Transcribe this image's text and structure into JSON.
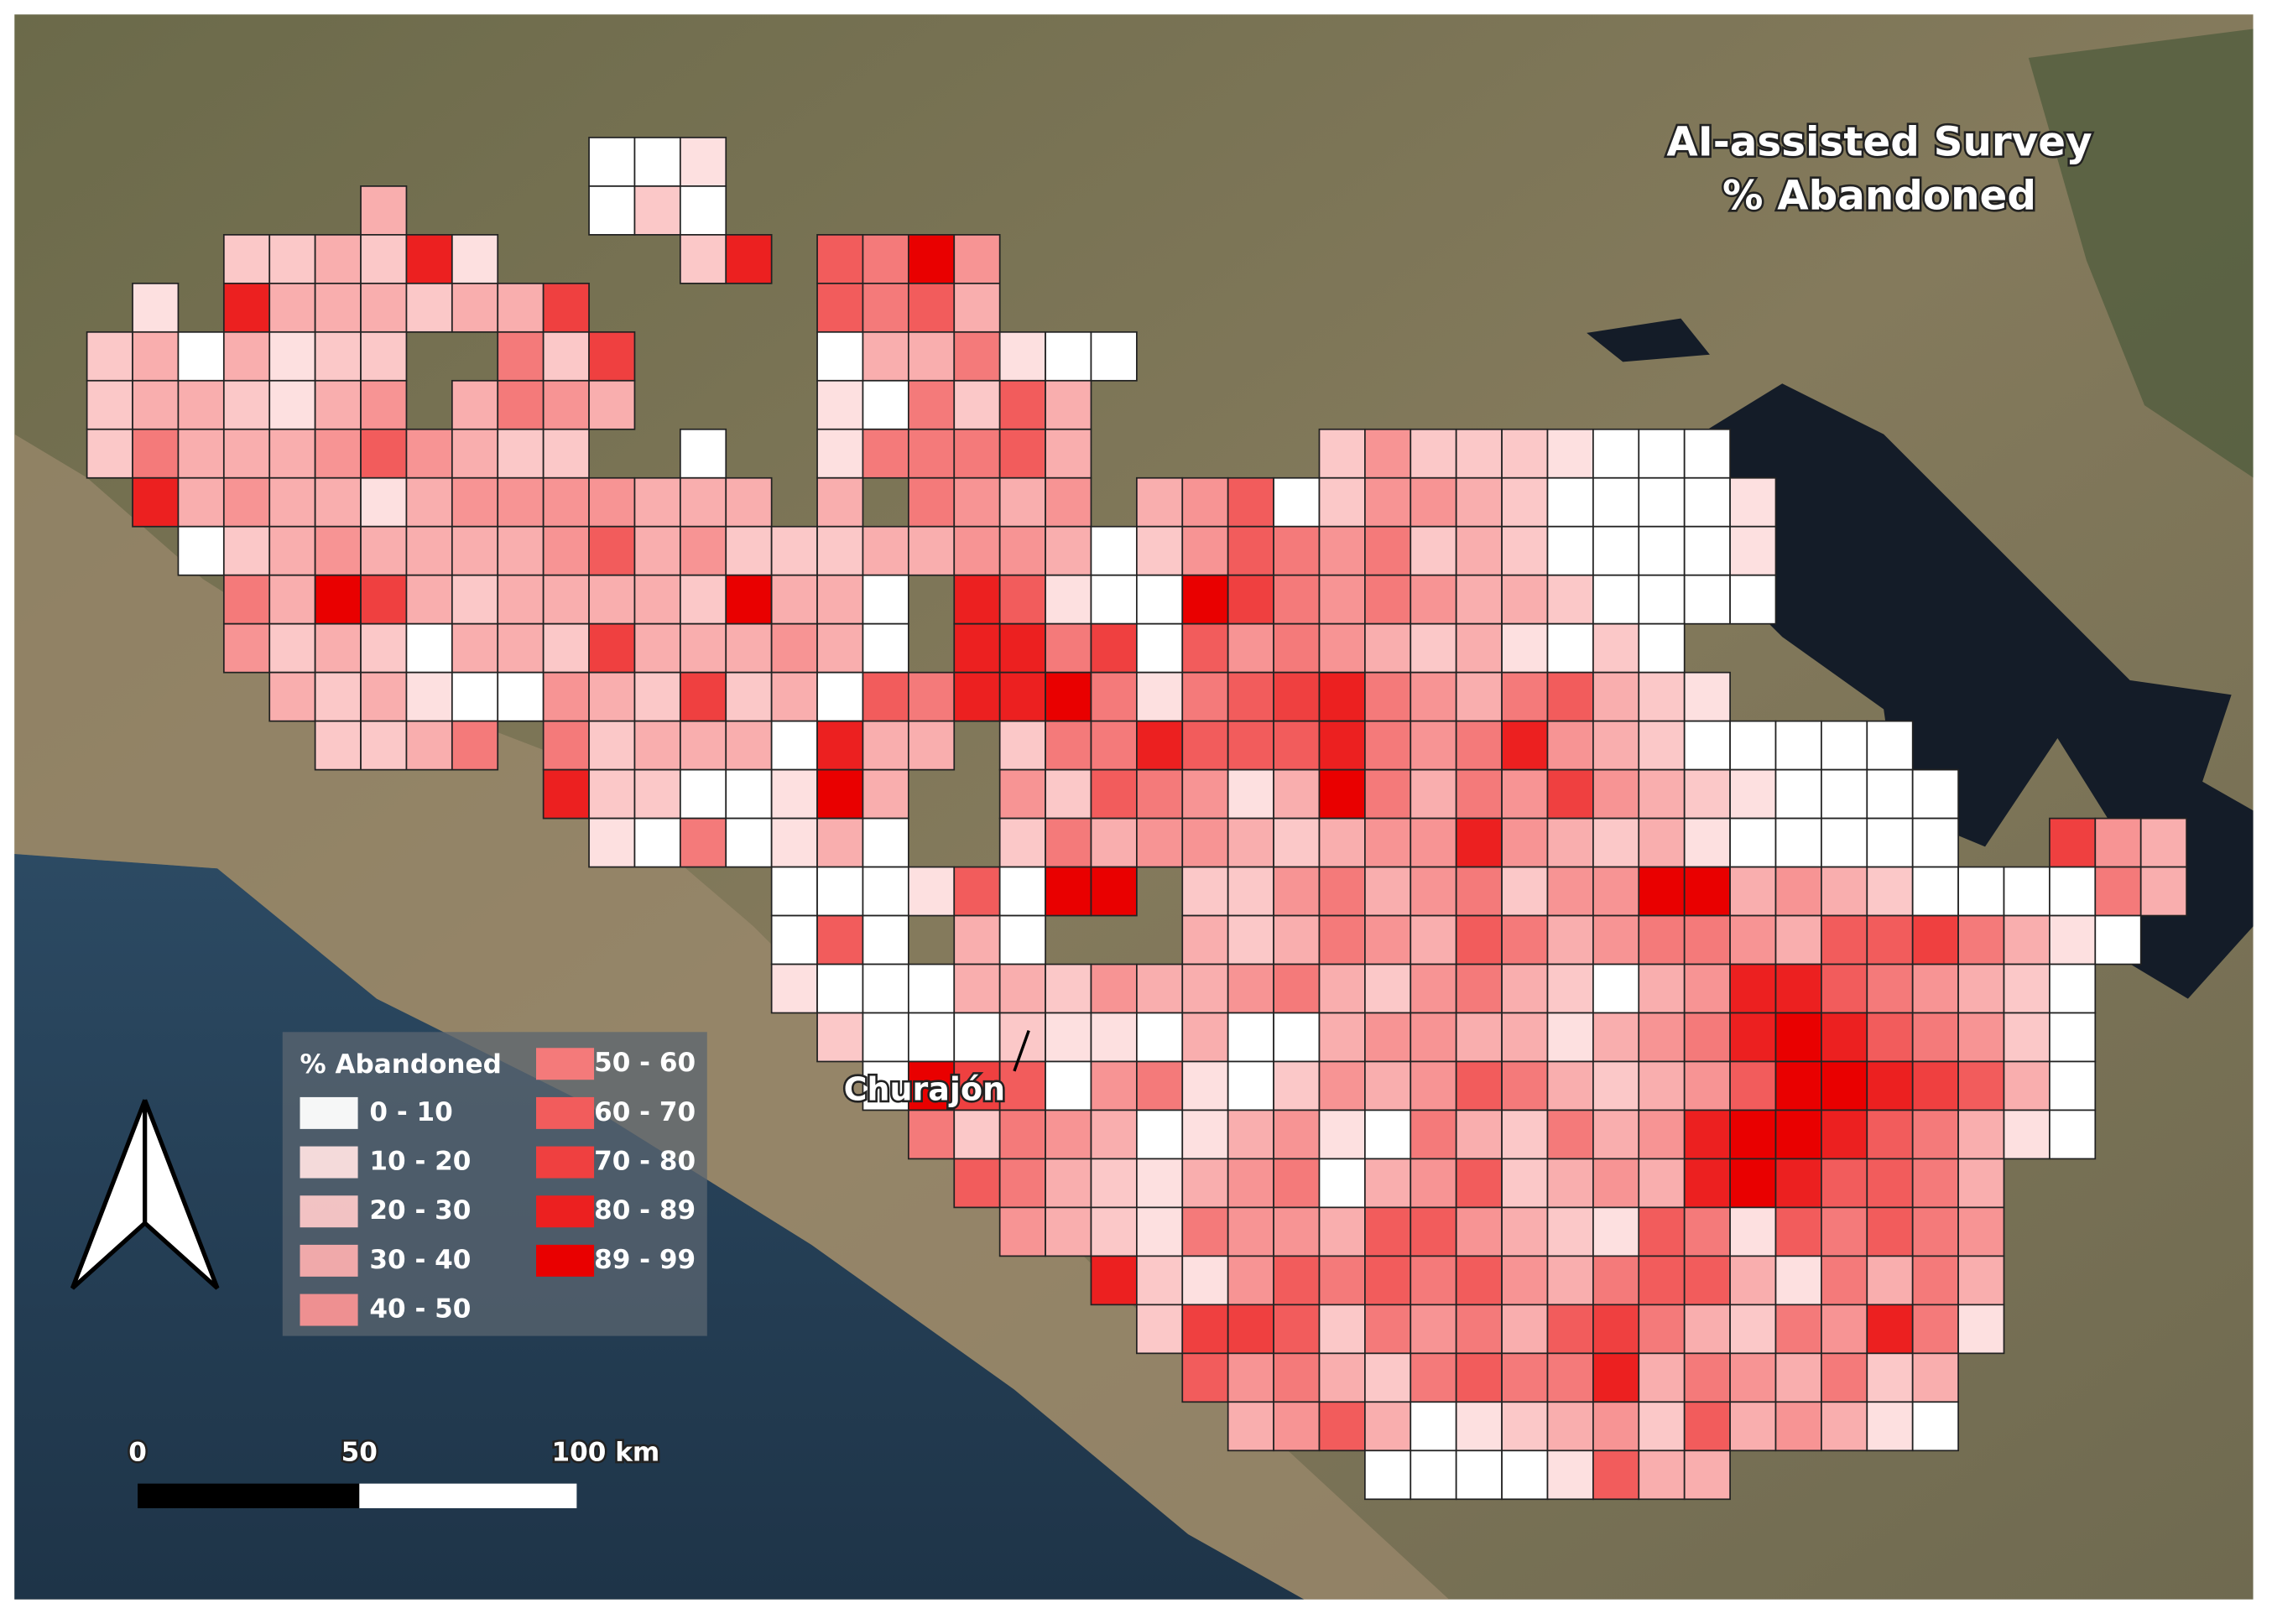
{
  "title": "AI-assisted Survey",
  "subtitle": "% Abandoned",
  "place_label": "Churajón",
  "legend": {
    "title": "% Abandoned",
    "classes": [
      {
        "label": "0 - 10",
        "color": "#ffffff"
      },
      {
        "label": "10 - 20",
        "color": "#fde0e0"
      },
      {
        "label": "20 - 30",
        "color": "#fbc8c8"
      },
      {
        "label": "30 - 40",
        "color": "#f9aeae"
      },
      {
        "label": "40 - 50",
        "color": "#f79494"
      },
      {
        "label": "50 - 60",
        "color": "#f47a7a"
      },
      {
        "label": "60 - 70",
        "color": "#f25c5c"
      },
      {
        "label": "70 - 80",
        "color": "#ef4040"
      },
      {
        "label": "80 - 89",
        "color": "#ec2020"
      },
      {
        "label": "89 - 99",
        "color": "#e90000"
      }
    ]
  },
  "scale_bar": {
    "labels": [
      "0",
      "50",
      "100 km"
    ]
  },
  "grid": {
    "rows": [
      [
        null,
        null,
        null,
        null,
        null,
        null,
        null,
        null,
        null,
        null,
        null,
        0,
        0,
        1
      ],
      [
        null,
        null,
        null,
        null,
        null,
        null,
        3,
        null,
        null,
        null,
        null,
        0,
        2,
        0
      ],
      [
        null,
        null,
        null,
        2,
        2,
        3,
        2,
        8,
        1,
        null,
        null,
        null,
        null,
        2,
        8,
        null,
        6,
        5,
        9,
        4
      ],
      [
        null,
        1,
        null,
        8,
        3,
        3,
        3,
        2,
        3,
        3,
        7,
        null,
        null,
        null,
        null,
        null,
        6,
        5,
        6,
        3
      ],
      [
        2,
        3,
        0,
        3,
        1,
        2,
        2,
        null,
        null,
        5,
        2,
        7,
        null,
        null,
        null,
        null,
        0,
        3,
        3,
        5,
        1,
        0,
        0
      ],
      [
        2,
        3,
        3,
        2,
        1,
        3,
        4,
        null,
        3,
        5,
        4,
        3,
        null,
        null,
        null,
        null,
        1,
        0,
        5,
        2,
        6,
        3
      ],
      [
        2,
        5,
        3,
        3,
        3,
        4,
        6,
        4,
        3,
        2,
        2,
        null,
        null,
        0,
        null,
        null,
        1,
        5,
        5,
        5,
        6,
        3,
        null,
        null,
        null,
        null,
        null,
        2,
        4,
        2,
        2,
        2,
        1,
        0,
        0,
        0
      ],
      [
        null,
        8,
        3,
        4,
        3,
        3,
        1,
        3,
        4,
        4,
        4,
        4,
        3,
        3,
        3,
        null,
        3,
        null,
        5,
        4,
        3,
        4,
        null,
        3,
        4,
        6,
        0,
        2,
        4,
        4,
        3,
        2,
        0,
        0,
        0,
        0,
        1
      ],
      [
        null,
        null,
        0,
        2,
        3,
        4,
        3,
        3,
        3,
        3,
        4,
        6,
        3,
        4,
        2,
        2,
        2,
        3,
        3,
        4,
        4,
        3,
        0,
        2,
        4,
        6,
        5,
        4,
        5,
        2,
        3,
        2,
        0,
        0,
        0,
        0,
        1
      ],
      [
        null,
        null,
        null,
        5,
        3,
        9,
        7,
        3,
        2,
        3,
        3,
        3,
        3,
        2,
        9,
        3,
        3,
        0,
        null,
        8,
        6,
        1,
        0,
        0,
        9,
        7,
        5,
        4,
        5,
        4,
        3,
        3,
        2,
        0,
        0,
        0,
        0
      ],
      [
        null,
        null,
        null,
        4,
        2,
        3,
        2,
        0,
        3,
        3,
        2,
        7,
        3,
        3,
        3,
        4,
        3,
        0,
        null,
        8,
        8,
        5,
        7,
        0,
        6,
        4,
        5,
        4,
        3,
        2,
        3,
        1,
        0,
        2,
        0
      ],
      [
        null,
        null,
        null,
        null,
        3,
        2,
        3,
        1,
        0,
        0,
        4,
        3,
        2,
        7,
        2,
        3,
        0,
        6,
        5,
        8,
        8,
        9,
        5,
        1,
        5,
        6,
        7,
        8,
        5,
        4,
        3,
        5,
        6,
        3,
        2,
        1
      ],
      [
        null,
        null,
        null,
        null,
        null,
        2,
        2,
        3,
        5,
        null,
        5,
        2,
        3,
        3,
        3,
        0,
        8,
        3,
        3,
        null,
        2,
        5,
        5,
        8,
        6,
        6,
        6,
        8,
        5,
        4,
        5,
        8,
        4,
        3,
        2,
        0,
        0,
        0,
        0,
        0
      ],
      [
        null,
        null,
        null,
        null,
        null,
        null,
        null,
        null,
        null,
        null,
        8,
        2,
        2,
        0,
        0,
        1,
        9,
        3,
        null,
        null,
        4,
        2,
        6,
        5,
        4,
        1,
        3,
        9,
        5,
        3,
        5,
        4,
        7,
        4,
        3,
        2,
        1,
        0,
        0,
        0,
        0
      ],
      [
        null,
        null,
        null,
        null,
        null,
        null,
        null,
        null,
        null,
        null,
        null,
        1,
        0,
        5,
        0,
        1,
        3,
        0,
        null,
        null,
        2,
        5,
        3,
        4,
        4,
        3,
        2,
        3,
        4,
        4,
        8,
        4,
        3,
        2,
        3,
        1,
        0,
        0,
        0,
        0,
        0,
        null,
        null,
        7,
        4,
        3
      ],
      [
        null,
        null,
        null,
        null,
        null,
        null,
        null,
        null,
        null,
        null,
        null,
        null,
        null,
        null,
        null,
        0,
        0,
        0,
        1,
        6,
        0,
        9,
        9,
        null,
        2,
        2,
        4,
        5,
        3,
        4,
        5,
        2,
        4,
        4,
        9,
        9,
        3,
        4,
        3,
        2,
        0,
        0,
        0,
        0,
        5,
        3
      ],
      [
        null,
        null,
        null,
        null,
        null,
        null,
        null,
        null,
        null,
        null,
        null,
        null,
        null,
        null,
        null,
        0,
        6,
        0,
        null,
        3,
        0,
        null,
        null,
        null,
        3,
        2,
        3,
        5,
        4,
        3,
        6,
        5,
        3,
        4,
        5,
        5,
        4,
        3,
        6,
        6,
        7,
        5,
        3,
        1,
        0
      ],
      [
        null,
        null,
        null,
        null,
        null,
        null,
        null,
        null,
        null,
        null,
        null,
        null,
        null,
        null,
        null,
        1,
        0,
        0,
        0,
        3,
        3,
        2,
        4,
        3,
        3,
        4,
        5,
        3,
        2,
        4,
        5,
        3,
        2,
        0,
        3,
        4,
        8,
        8,
        6,
        5,
        4,
        3,
        2,
        0
      ],
      [
        null,
        null,
        null,
        null,
        null,
        null,
        null,
        null,
        null,
        null,
        null,
        null,
        null,
        null,
        null,
        null,
        2,
        0,
        0,
        0,
        2,
        1,
        1,
        0,
        3,
        0,
        0,
        3,
        4,
        4,
        3,
        3,
        1,
        3,
        4,
        5,
        8,
        9,
        8,
        6,
        5,
        4,
        2,
        0
      ],
      [
        null,
        null,
        null,
        null,
        null,
        null,
        null,
        null,
        null,
        null,
        null,
        null,
        null,
        null,
        null,
        null,
        null,
        0,
        9,
        7,
        6,
        0,
        4,
        5,
        1,
        0,
        2,
        4,
        3,
        4,
        6,
        5,
        3,
        2,
        3,
        4,
        6,
        9,
        9,
        8,
        7,
        6,
        3,
        0
      ],
      [
        null,
        null,
        null,
        null,
        null,
        null,
        null,
        null,
        null,
        null,
        null,
        null,
        null,
        null,
        null,
        null,
        null,
        null,
        5,
        2,
        5,
        4,
        3,
        0,
        1,
        3,
        4,
        1,
        0,
        5,
        3,
        2,
        5,
        3,
        4,
        8,
        9,
        9,
        8,
        6,
        5,
        3,
        1,
        0
      ],
      [
        null,
        null,
        null,
        null,
        null,
        null,
        null,
        null,
        null,
        null,
        null,
        null,
        null,
        null,
        null,
        null,
        null,
        null,
        null,
        6,
        5,
        3,
        2,
        1,
        3,
        4,
        5,
        0,
        3,
        4,
        6,
        2,
        3,
        4,
        3,
        8,
        9,
        8,
        6,
        6,
        5,
        3
      ],
      [
        null,
        null,
        null,
        null,
        null,
        null,
        null,
        null,
        null,
        null,
        null,
        null,
        null,
        null,
        null,
        null,
        null,
        null,
        null,
        null,
        4,
        3,
        2,
        1,
        5,
        4,
        4,
        3,
        6,
        6,
        4,
        3,
        2,
        1,
        6,
        5,
        1,
        6,
        5,
        6,
        5,
        4
      ],
      [
        null,
        null,
        null,
        null,
        null,
        null,
        null,
        null,
        null,
        null,
        null,
        null,
        null,
        null,
        null,
        null,
        null,
        null,
        null,
        null,
        null,
        null,
        8,
        2,
        1,
        4,
        6,
        5,
        6,
        5,
        6,
        4,
        3,
        5,
        6,
        6,
        3,
        1,
        5,
        3,
        5,
        3
      ],
      [
        null,
        null,
        null,
        null,
        null,
        null,
        null,
        null,
        null,
        null,
        null,
        null,
        null,
        null,
        null,
        null,
        null,
        null,
        null,
        null,
        null,
        null,
        null,
        2,
        7,
        7,
        6,
        2,
        5,
        4,
        5,
        3,
        6,
        7,
        5,
        3,
        2,
        5,
        4,
        8,
        5,
        1
      ],
      [
        null,
        null,
        null,
        null,
        null,
        null,
        null,
        null,
        null,
        null,
        null,
        null,
        null,
        null,
        null,
        null,
        null,
        null,
        null,
        null,
        null,
        null,
        null,
        null,
        6,
        4,
        5,
        3,
        2,
        5,
        6,
        5,
        5,
        8,
        3,
        5,
        4,
        3,
        5,
        2,
        3
      ],
      [
        null,
        null,
        null,
        null,
        null,
        null,
        null,
        null,
        null,
        null,
        null,
        null,
        null,
        null,
        null,
        null,
        null,
        null,
        null,
        null,
        null,
        null,
        null,
        null,
        null,
        3,
        4,
        6,
        3,
        0,
        1,
        2,
        3,
        4,
        2,
        6,
        3,
        4,
        3,
        1,
        0
      ],
      [
        null,
        null,
        null,
        null,
        null,
        null,
        null,
        null,
        null,
        null,
        null,
        null,
        null,
        null,
        null,
        null,
        null,
        null,
        null,
        null,
        null,
        null,
        null,
        null,
        null,
        null,
        null,
        null,
        0,
        0,
        0,
        0,
        1,
        6,
        3,
        3
      ]
    ]
  }
}
